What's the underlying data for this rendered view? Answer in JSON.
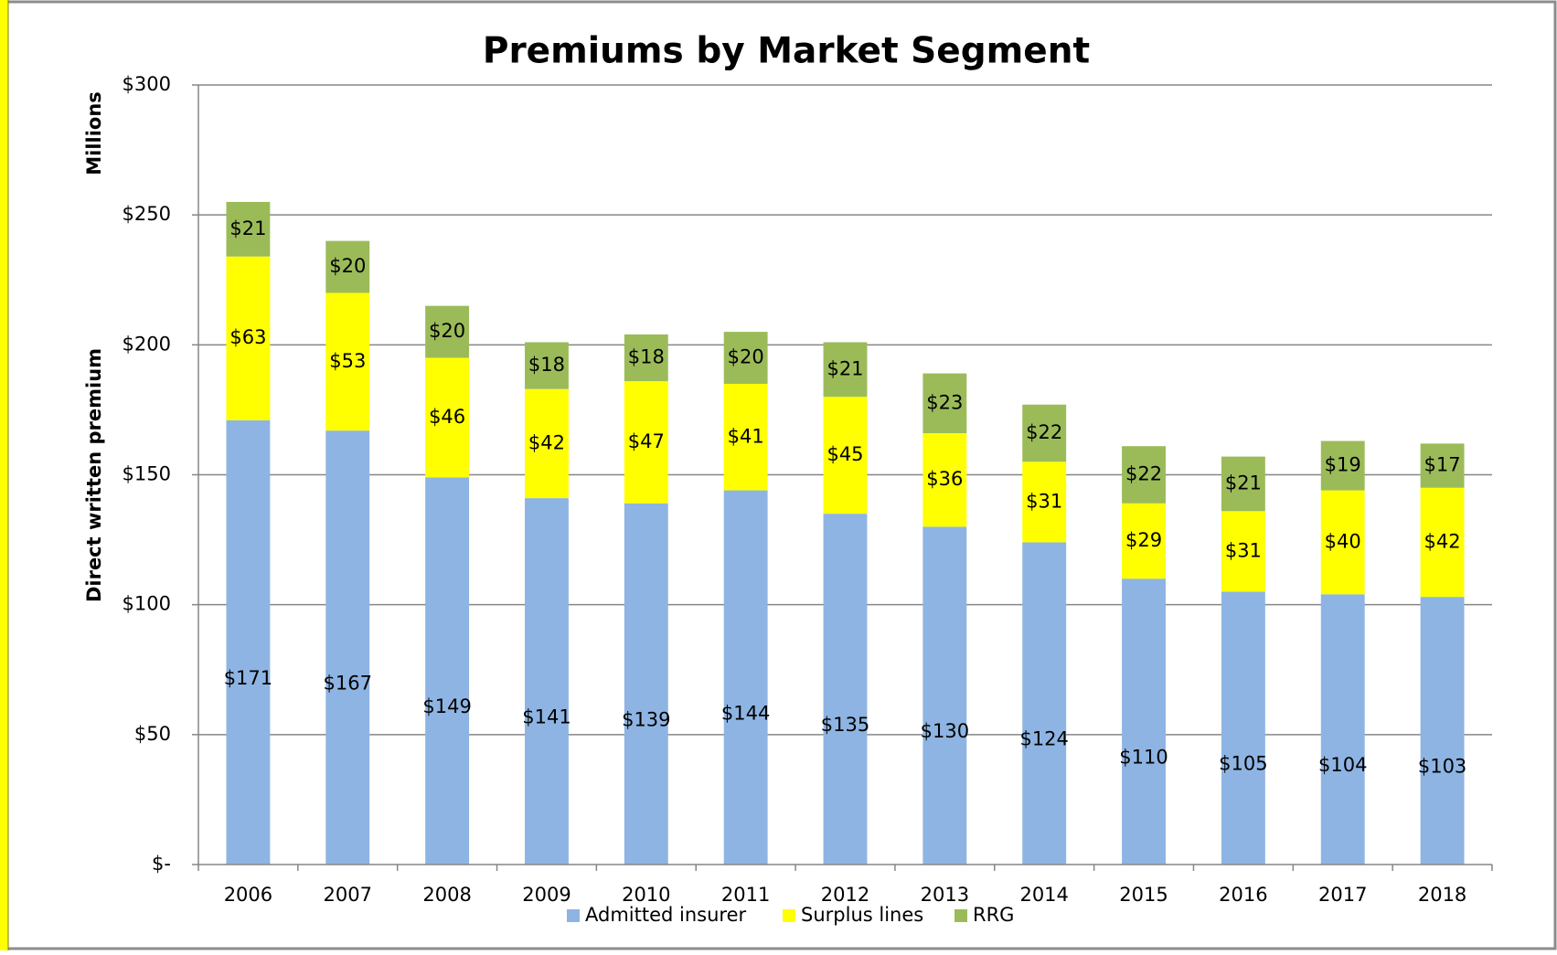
{
  "chart_data": {
    "type": "stacked-bar",
    "title": "Premiums by Market Segment",
    "y_label": "Direct written premium",
    "y_unit_label": "Millions",
    "categories": [
      "2006",
      "2007",
      "2008",
      "2009",
      "2010",
      "2011",
      "2012",
      "2013",
      "2014",
      "2015",
      "2016",
      "2017",
      "2018"
    ],
    "series": [
      {
        "name": "Admitted insurer",
        "color": "#8eb4e3",
        "values": [
          171,
          167,
          149,
          141,
          139,
          144,
          135,
          130,
          124,
          110,
          105,
          104,
          103
        ],
        "value_labels": [
          "$171",
          "$167",
          "$149",
          "$141",
          "$139",
          "$144",
          "$135",
          "$130",
          "$124",
          "$110",
          "$105",
          "$104",
          "$103"
        ]
      },
      {
        "name": "Surplus lines",
        "color": "#ffff00",
        "values": [
          63,
          53,
          46,
          42,
          47,
          41,
          45,
          36,
          31,
          29,
          31,
          40,
          42
        ],
        "value_labels": [
          "$63",
          "$53",
          "$46",
          "$42",
          "$47",
          "$41",
          "$45",
          "$36",
          "$31",
          "$29",
          "$31",
          "$40",
          "$42"
        ]
      },
      {
        "name": "RRG",
        "color": "#9bbb59",
        "values": [
          21,
          20,
          20,
          18,
          18,
          20,
          21,
          23,
          22,
          22,
          21,
          19,
          17
        ],
        "value_labels": [
          "$21",
          "$20",
          "$20",
          "$18",
          "$18",
          "$20",
          "$21",
          "$23",
          "$22",
          "$22",
          "$21",
          "$19",
          "$17"
        ]
      }
    ],
    "ylim": [
      0,
      300
    ],
    "yticks": [
      {
        "value": 0,
        "label": "$-"
      },
      {
        "value": 50,
        "label": "$50"
      },
      {
        "value": 100,
        "label": "$100"
      },
      {
        "value": 150,
        "label": "$150"
      },
      {
        "value": 200,
        "label": "$200"
      },
      {
        "value": 250,
        "label": "$250"
      },
      {
        "value": 300,
        "label": "$300"
      }
    ],
    "grid": true,
    "legend": "bottom"
  }
}
